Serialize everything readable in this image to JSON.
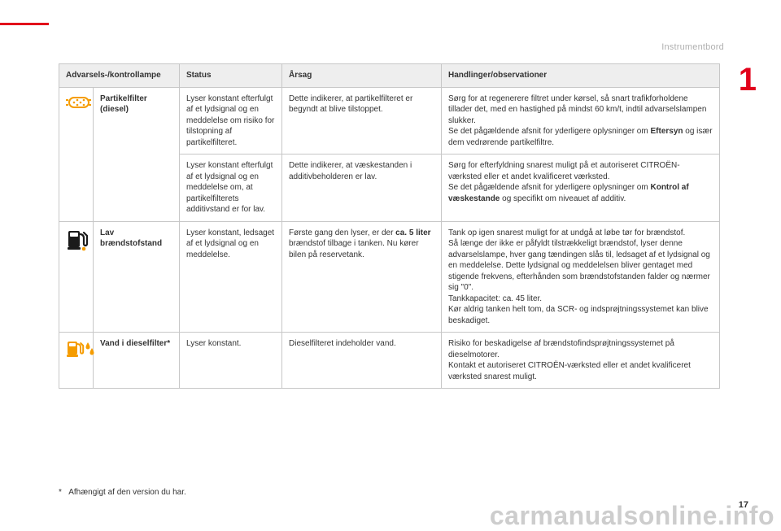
{
  "colors": {
    "accent_red": "#e2001a",
    "header_gray": "#b0b0b0",
    "table_header_bg": "#eeeeee",
    "border": "#c7c7c7",
    "icon_orange": "#f59c00",
    "icon_black": "#1a1a1a",
    "watermark": "#c8c8c8"
  },
  "header": {
    "section": "Instrumentbord",
    "chapter_number": "1",
    "page_number": "17"
  },
  "footnote": {
    "marker": "*",
    "text": "Afhængigt af den version du har."
  },
  "watermark": "carmanualsonline.info",
  "table": {
    "headers": {
      "lamp": "Advarsels-/kontrollampe",
      "status": "Status",
      "cause": "Årsag",
      "actions": "Handlinger/observationer"
    },
    "rows": [
      {
        "icon": "particle-filter",
        "name": "Partikelfilter (diesel)",
        "sub": [
          {
            "status": "Lyser konstant efterfulgt af et lydsignal og en meddelelse om risiko for tilstopning af partikelfilteret.",
            "cause": "Dette indikerer, at partikelfilteret er begyndt at blive tilstoppet.",
            "action_pre": "Sørg for at regenerere filtret under kørsel, så snart trafikforholdene tillader det, med en hastighed på mindst 60 km/t, indtil advarselslampen slukker.\nSe det pågældende afsnit for yderligere oplysninger om ",
            "action_bold": "Eftersyn",
            "action_post": " og især dem vedrørende partikelfiltre."
          },
          {
            "status": "Lyser konstant efterfulgt af et lydsignal og en meddelelse om, at partikelfilterets additivstand er for lav.",
            "cause": "Dette indikerer, at væskestanden i additivbeholderen er lav.",
            "action_pre": "Sørg for efterfyldning snarest muligt på et autoriseret CITROËN-værksted eller et andet kvalificeret værksted.\nSe det pågældende afsnit for yderligere oplysninger om ",
            "action_bold": "Kontrol af væskestande",
            "action_post": " og specifikt om niveauet af additiv."
          }
        ]
      },
      {
        "icon": "fuel-low",
        "name": "Lav brændstofstand",
        "sub": [
          {
            "status": "Lyser konstant, ledsaget af et lydsignal og en meddelelse.",
            "cause_pre": "Første gang den lyser, er der ",
            "cause_bold": "ca. 5 liter",
            "cause_post": " brændstof tilbage i tanken. Nu kører bilen på reservetank.",
            "action": "Tank op igen snarest muligt for at undgå at løbe tør for brændstof.\nSå længe der ikke er påfyldt tilstrækkeligt brændstof, lyser denne advarselslampe, hver gang tændingen slås til, ledsaget af et lydsignal og en meddelelse. Dette lydsignal og meddelelsen bliver gentaget med stigende frekvens, efterhånden som brændstofstanden falder og nærmer sig \"0\".\nTankkapacitet: ca. 45 liter.\nKør aldrig tanken helt tom, da SCR- og indsprøjtningssystemet kan blive beskadiget."
          }
        ]
      },
      {
        "icon": "water-in-fuel",
        "name_pre": "Vand i dieselfilter",
        "name_sup": "*",
        "sub": [
          {
            "status": "Lyser konstant.",
            "cause": "Dieselfilteret indeholder vand.",
            "action": "Risiko for beskadigelse af brændstofindsprøjtningssystemet på dieselmotorer.\nKontakt et autoriseret CITROËN-værksted eller et andet kvalificeret værksted snarest muligt."
          }
        ]
      }
    ]
  }
}
